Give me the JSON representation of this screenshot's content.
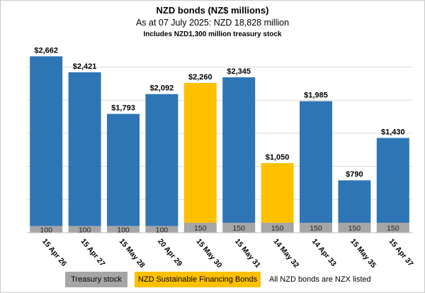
{
  "title": "NZD bonds (NZ$ millions)",
  "subtitle": "As at 07 July 2025: NZD 18,828 million",
  "note": "Includes NZD1,300 million treasury stock",
  "chart_data": {
    "type": "bar",
    "stacked": true,
    "categories": [
      "15 Apr 26",
      "15 Apr 27",
      "15 May 28",
      "20 Apr 29",
      "15 May 30",
      "15 May 31",
      "14 May 32",
      "14 Apr 33",
      "15 May 35",
      "15 Apr 37"
    ],
    "totals": [
      2662,
      2421,
      1793,
      2092,
      2260,
      2345,
      1050,
      1985,
      790,
      1430
    ],
    "total_labels": [
      "$2,662",
      "$2,421",
      "$1,793",
      "$2,092",
      "$2,260",
      "$2,345",
      "$1,050",
      "$1,985",
      "$790",
      "$1,430"
    ],
    "treasury_stock": [
      100,
      100,
      100,
      100,
      150,
      150,
      150,
      150,
      150,
      150
    ],
    "bond_type": [
      "standard",
      "standard",
      "standard",
      "standard",
      "sustainable",
      "standard",
      "sustainable",
      "standard",
      "standard",
      "standard"
    ],
    "ylim": [
      0,
      2800
    ],
    "gridlines": [
      0,
      500,
      1000,
      1500,
      2000,
      2500
    ],
    "grid": true,
    "legend_position": "bottom",
    "colors": {
      "standard": "#2e75b6",
      "sustainable": "#ffc000",
      "treasury": "#a6a6a6",
      "grid": "#d9d9d9"
    }
  },
  "legend": {
    "treasury_label": "Treasury stock",
    "sfb_label": "NZD Sustainable Financing Bonds",
    "note_label": "All NZD bonds are NZX listed"
  }
}
